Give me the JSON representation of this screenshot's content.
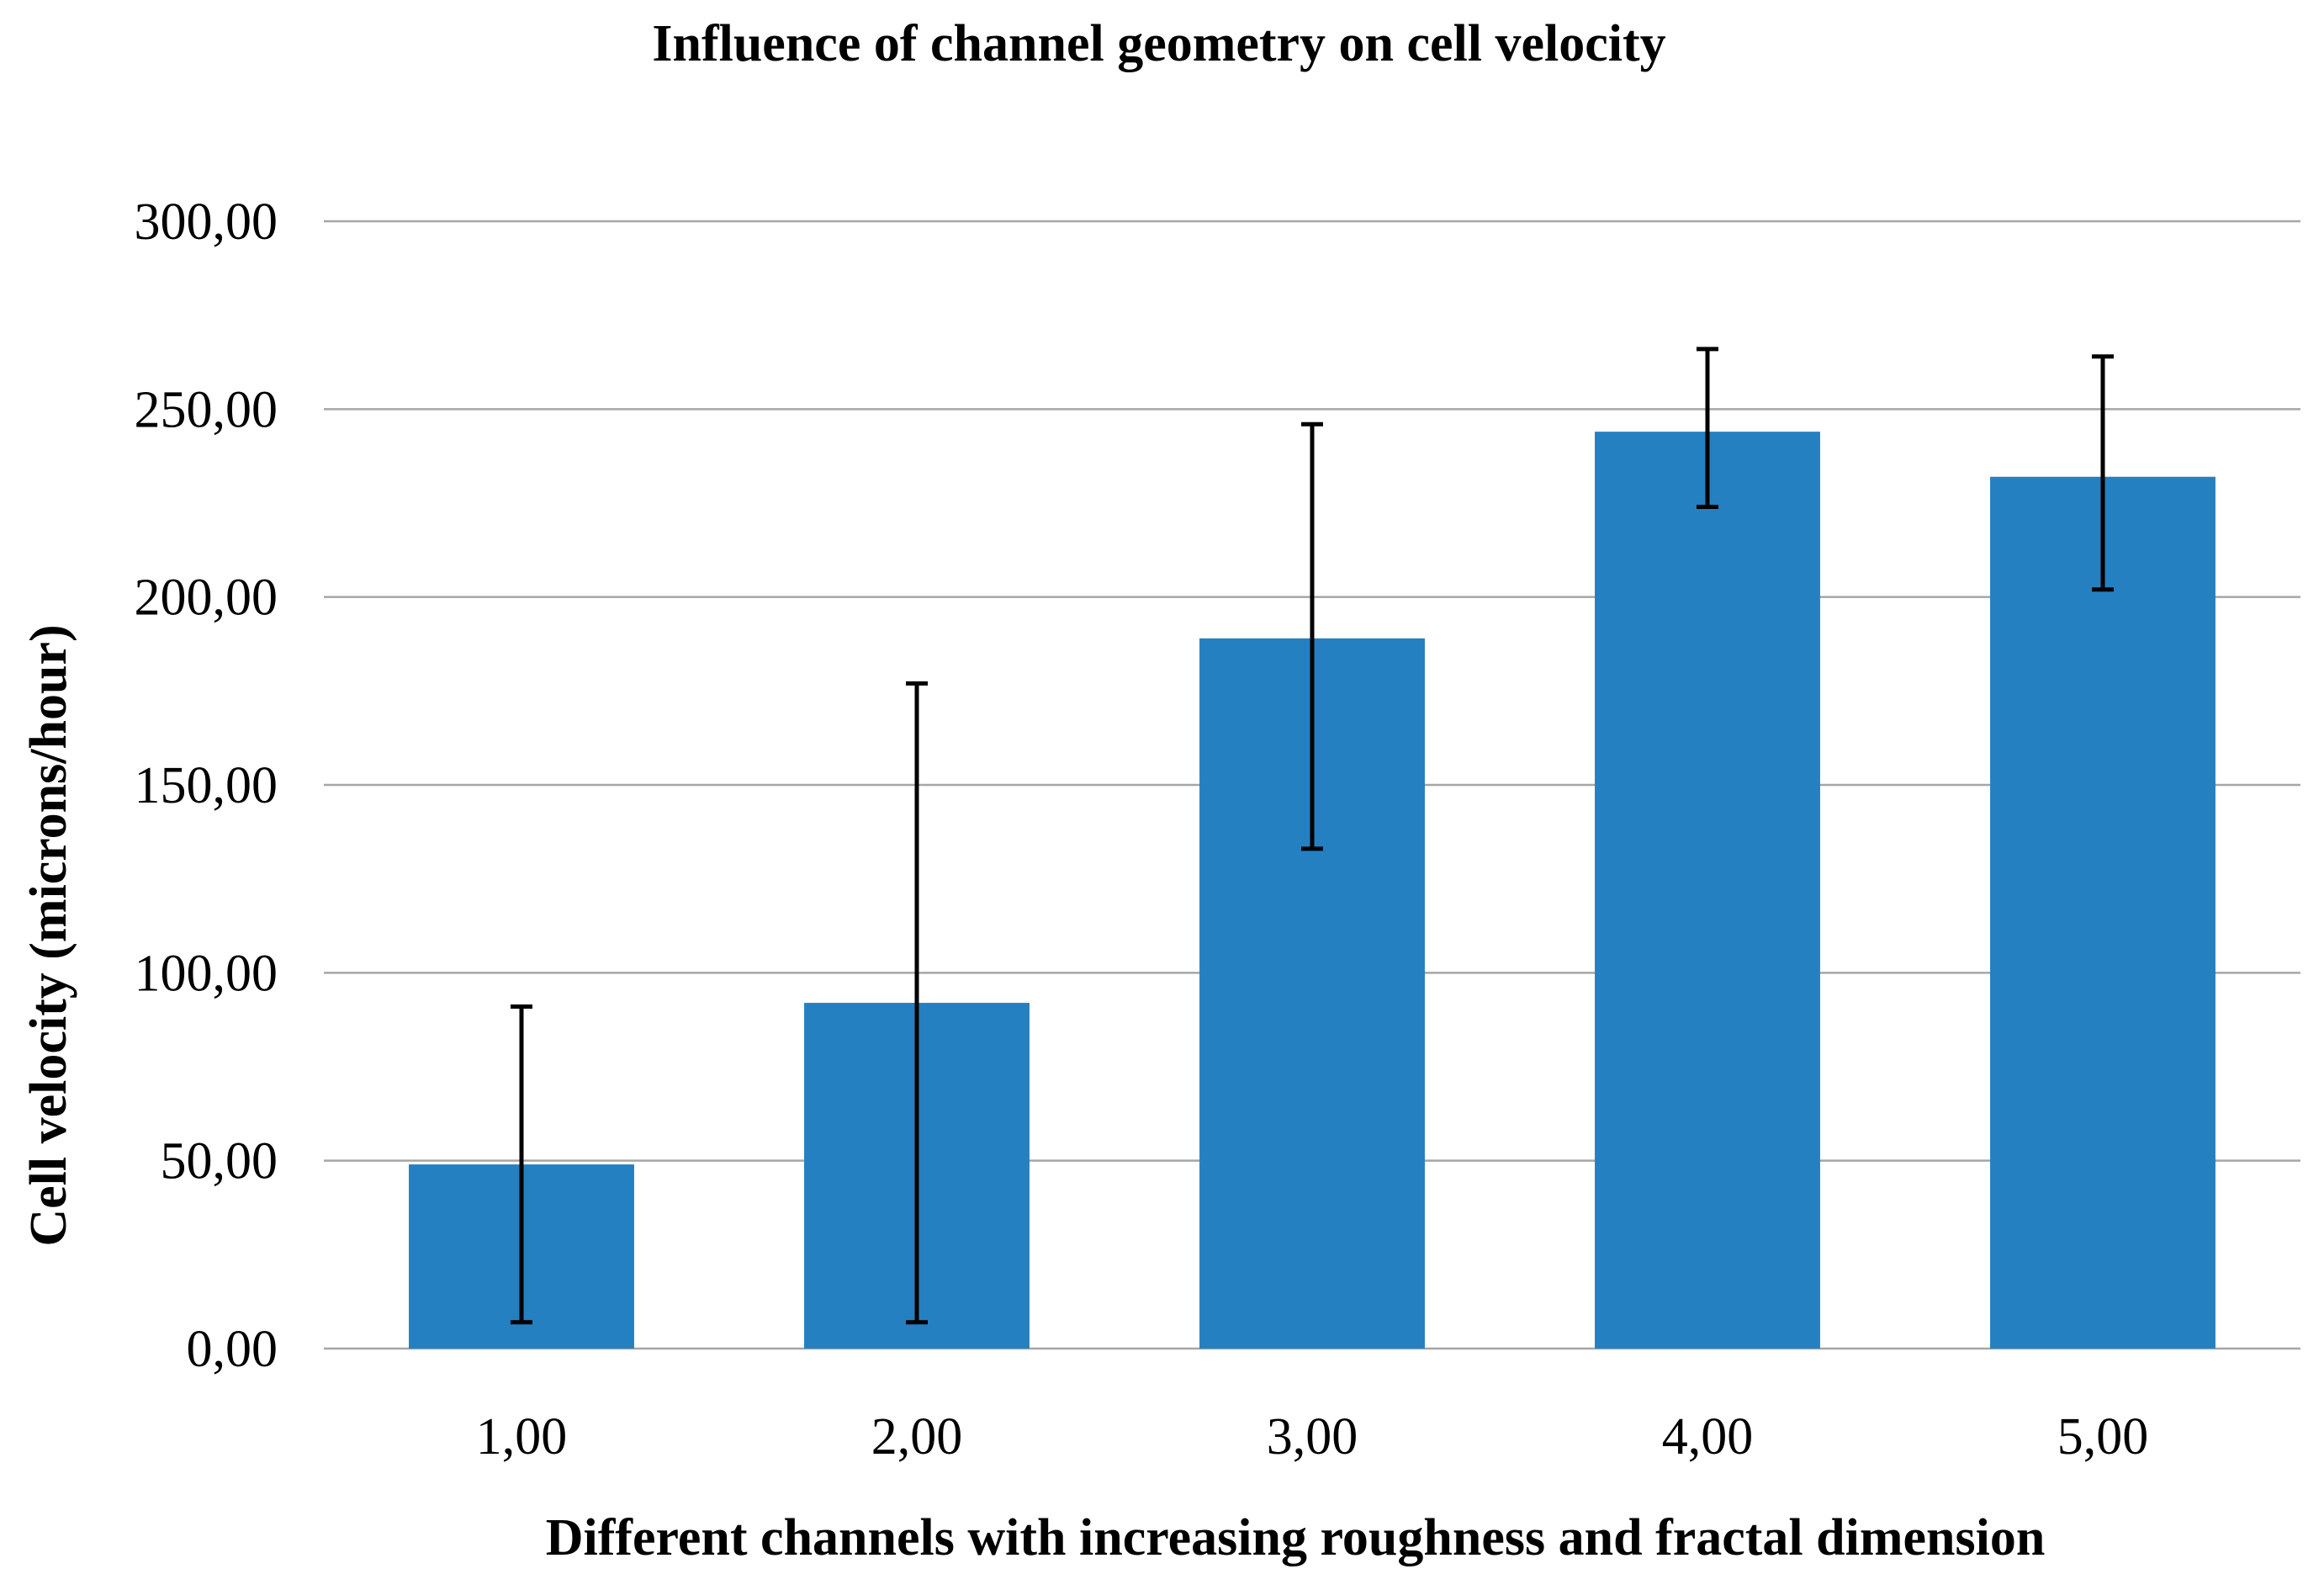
{
  "chart_data": {
    "type": "bar",
    "title": "Influence of channel geometry on cell velocity",
    "xlabel": "Different channels with increasing roughness and fractal dimension",
    "ylabel": "Cell velocity (microns/hour)",
    "categories": [
      "1,00",
      "2,00",
      "3,00",
      "4,00",
      "5,00"
    ],
    "values": [
      49,
      92,
      189,
      244,
      232
    ],
    "errors": [
      {
        "low": 7,
        "high": 91
      },
      {
        "low": 7,
        "high": 177
      },
      {
        "low": 133,
        "high": 246
      },
      {
        "low": 224,
        "high": 266
      },
      {
        "low": 202,
        "high": 264
      }
    ],
    "ylim": [
      0,
      300
    ],
    "yticks": [
      0,
      50,
      100,
      150,
      200,
      250,
      300
    ],
    "ytick_labels": [
      "0,00",
      "50,00",
      "100,00",
      "150,00",
      "200,00",
      "250,00",
      "300,00"
    ],
    "grid": true,
    "bar_color": "#2480c1",
    "legend": "none"
  }
}
